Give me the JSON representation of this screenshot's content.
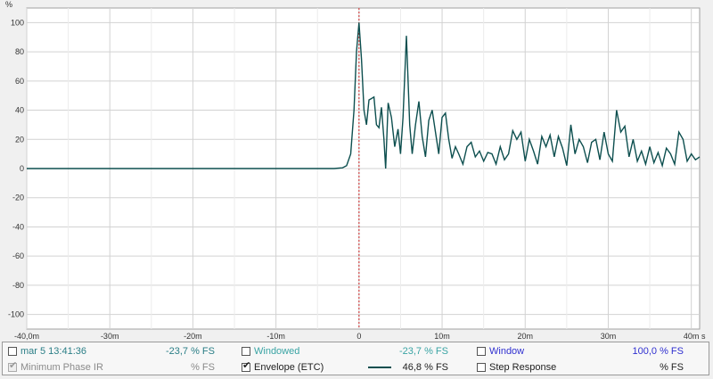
{
  "chart_data": {
    "type": "line",
    "y_unit": "%",
    "x_unit": "s",
    "xlim": [
      -40,
      41
    ],
    "ylim": [
      -110,
      110
    ],
    "x_ticks": [
      {
        "v": -40,
        "label": "-40,0m"
      },
      {
        "v": -30,
        "label": "-30m"
      },
      {
        "v": -20,
        "label": "-20m"
      },
      {
        "v": -10,
        "label": "-10m"
      },
      {
        "v": 0,
        "label": "0"
      },
      {
        "v": 10,
        "label": "10m"
      },
      {
        "v": 20,
        "label": "20m"
      },
      {
        "v": 30,
        "label": "30m"
      },
      {
        "v": 40,
        "label": "40m"
      }
    ],
    "y_ticks": [
      100,
      80,
      60,
      40,
      20,
      0,
      -20,
      -40,
      -60,
      -80,
      -100
    ],
    "grid": true,
    "series": [
      {
        "name": "Envelope (ETC)",
        "color": "#0d4f4f",
        "x": [
          -40,
          -10,
          -3,
          -2,
          -1.5,
          -1.0,
          -0.6,
          -0.3,
          0,
          0.3,
          0.6,
          0.9,
          1.2,
          1.5,
          1.8,
          2.1,
          2.4,
          2.7,
          3.0,
          3.2,
          3.5,
          3.9,
          4.3,
          4.7,
          5.0,
          5.3,
          5.7,
          6.1,
          6.4,
          6.8,
          7.2,
          7.6,
          8.0,
          8.4,
          8.8,
          9.2,
          9.6,
          10.0,
          10.4,
          10.8,
          11.2,
          11.6,
          12.0,
          12.5,
          13.0,
          13.5,
          14.0,
          14.5,
          15.0,
          15.5,
          16.0,
          16.5,
          17.0,
          17.5,
          18.0,
          18.5,
          19.0,
          19.5,
          20.0,
          20.5,
          21.0,
          21.5,
          22.0,
          22.5,
          23.0,
          23.5,
          24.0,
          24.5,
          25.0,
          25.5,
          26.0,
          26.5,
          27.0,
          27.5,
          28.0,
          28.5,
          29.0,
          29.5,
          30.0,
          30.5,
          31.0,
          31.5,
          32.0,
          32.5,
          33.0,
          33.5,
          34.0,
          34.5,
          35.0,
          35.5,
          36.0,
          36.5,
          37.0,
          37.5,
          38.0,
          38.5,
          39.0,
          39.5,
          40.0,
          40.5,
          41.0
        ],
        "y": [
          0,
          0,
          0,
          0.5,
          2,
          10,
          40,
          80,
          100,
          75,
          40,
          30,
          47,
          48,
          49,
          30,
          28,
          42,
          20,
          0,
          45,
          35,
          15,
          27,
          10,
          35,
          91,
          30,
          10,
          30,
          46,
          22,
          8,
          33,
          40,
          25,
          10,
          35,
          38,
          20,
          7,
          15,
          10,
          3,
          15,
          18,
          8,
          12,
          5,
          11,
          10,
          3,
          15,
          6,
          10,
          26,
          20,
          25,
          5,
          20,
          12,
          3,
          22,
          15,
          23,
          8,
          22,
          14,
          2,
          30,
          10,
          20,
          15,
          4,
          18,
          20,
          6,
          25,
          10,
          5,
          40,
          25,
          29,
          8,
          20,
          5,
          12,
          3,
          15,
          4,
          11,
          2,
          14,
          10,
          3,
          25,
          20,
          5,
          10,
          6,
          8
        ]
      }
    ],
    "marker_x": 0
  },
  "legend": {
    "rows": [
      [
        {
          "label": "mar 5 13:41:36",
          "value": "-23,7 % FS",
          "checked": false,
          "disabled": false,
          "label_color": "#2a7e86",
          "value_color": "#2a7e86"
        },
        {
          "label": "Windowed",
          "value": "-23,7 % FS",
          "checked": false,
          "disabled": false,
          "label_color": "#3aa4a4",
          "value_color": "#3aa4a4"
        },
        {
          "label": "Window",
          "value": "100,0 % FS",
          "checked": false,
          "disabled": false,
          "label_color": "#3030d0",
          "value_color": "#3030d0"
        }
      ],
      [
        {
          "label": "Minimum Phase IR",
          "value": "% FS",
          "checked": true,
          "disabled": true,
          "label_color": "#8a8a8a",
          "value_color": "#8a8a8a"
        },
        {
          "label": "Envelope (ETC)",
          "value": "46,8 % FS",
          "checked": true,
          "disabled": false,
          "label_color": "#222222",
          "value_color": "#222222",
          "swatch": true
        },
        {
          "label": "Step Response",
          "value": "% FS",
          "checked": false,
          "disabled": false,
          "label_color": "#222222",
          "value_color": "#222222"
        }
      ]
    ],
    "swatch_color": "#0d4f4f"
  }
}
